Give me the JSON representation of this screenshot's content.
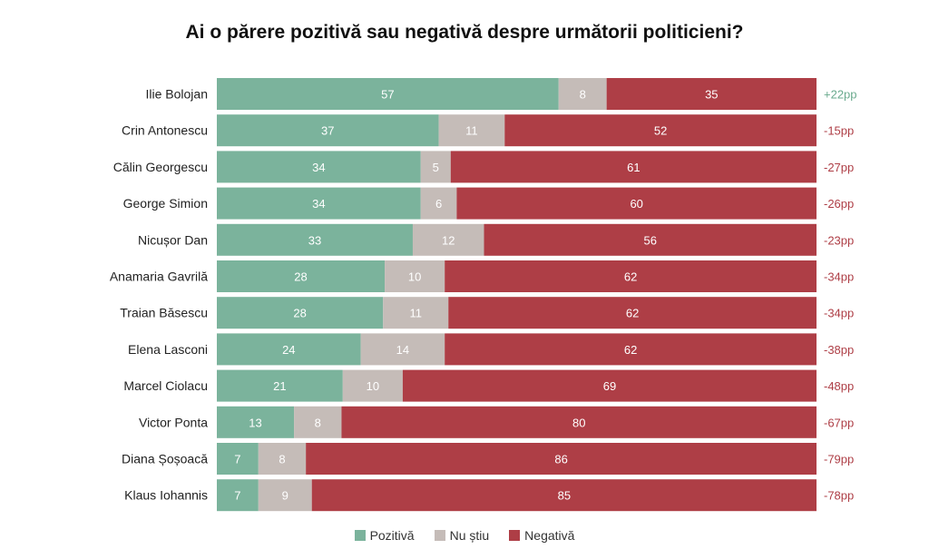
{
  "chart_data": {
    "type": "bar",
    "orientation": "horizontal",
    "stacked": true,
    "title": "Ai o părere pozitivă sau negativă despre următorii politicieni?",
    "categories": [
      "Ilie Bolojan",
      "Crin Antonescu",
      "Călin Georgescu",
      "George Simion",
      "Nicușor Dan",
      "Anamaria Gavrilă",
      "Traian Băsescu",
      "Elena Lasconi",
      "Marcel Ciolacu",
      "Victor Ponta",
      "Diana Șoșoacă",
      "Klaus Iohannis"
    ],
    "series": [
      {
        "name": "Pozitivă",
        "color": "#7bb39c",
        "values": [
          57,
          37,
          34,
          34,
          33,
          28,
          28,
          24,
          21,
          13,
          7,
          7
        ]
      },
      {
        "name": "Nu știu",
        "color": "#c5bcb8",
        "values": [
          8,
          11,
          5,
          6,
          12,
          10,
          11,
          14,
          10,
          8,
          8,
          9
        ]
      },
      {
        "name": "Negativă",
        "color": "#ae3e46",
        "values": [
          35,
          52,
          61,
          60,
          56,
          62,
          62,
          62,
          69,
          80,
          86,
          85
        ]
      }
    ],
    "net_labels": [
      "+22pp",
      "-15pp",
      "-27pp",
      "-26pp",
      "-23pp",
      "-34pp",
      "-34pp",
      "-38pp",
      "-48pp",
      "-67pp",
      "-79pp",
      "-78pp"
    ],
    "net_colors": {
      "positive": "#6aaa8e",
      "negative": "#ae3e46"
    },
    "legend_position": "bottom",
    "grid": false
  }
}
